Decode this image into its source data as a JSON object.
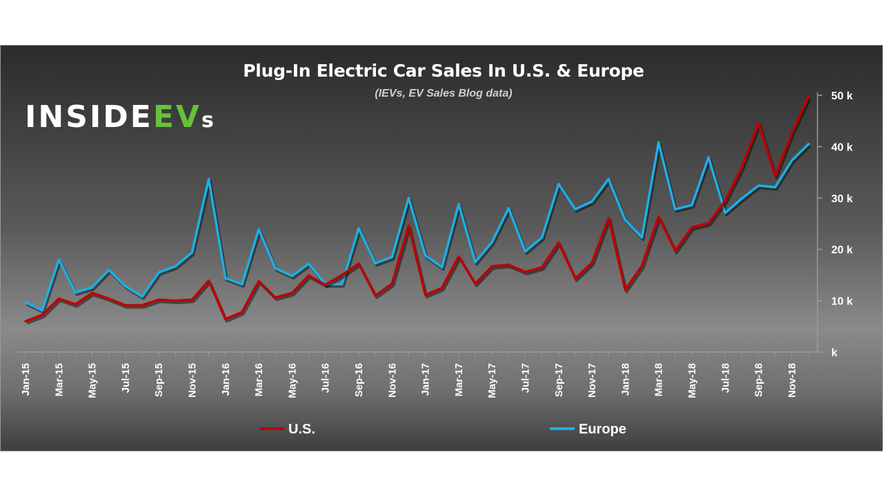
{
  "title": "Plug-In Electric Car Sales In U.S. & Europe",
  "subtitle": "(IEVs, EV Sales Blog data)",
  "logo": {
    "part1": "INSIDE",
    "part2": "EV",
    "part3": "s",
    "accent_color": "#66c23a"
  },
  "chart_data": {
    "type": "line",
    "title": "Plug-In Electric Car Sales In U.S. & Europe",
    "subtitle": "(IEVs, EV Sales Blog data)",
    "x": [
      "Jan-15",
      "Feb-15",
      "Mar-15",
      "Apr-15",
      "May-15",
      "Jun-15",
      "Jul-15",
      "Aug-15",
      "Sep-15",
      "Oct-15",
      "Nov-15",
      "Dec-15",
      "Jan-16",
      "Feb-16",
      "Mar-16",
      "Apr-16",
      "May-16",
      "Jun-16",
      "Jul-16",
      "Aug-16",
      "Sep-16",
      "Oct-16",
      "Nov-16",
      "Dec-16",
      "Jan-17",
      "Feb-17",
      "Mar-17",
      "Apr-17",
      "May-17",
      "Jun-17",
      "Jul-17",
      "Aug-17",
      "Sep-17",
      "Oct-17",
      "Nov-17",
      "Dec-17",
      "Jan-18",
      "Feb-18",
      "Mar-18",
      "Apr-18",
      "May-18",
      "Jun-18",
      "Jul-18",
      "Aug-18",
      "Sep-18",
      "Oct-18",
      "Nov-18",
      "Dec-18"
    ],
    "x_tick_labels": [
      "Jan-15",
      "Mar-15",
      "May-15",
      "Jul-15",
      "Sep-15",
      "Nov-15",
      "Jan-16",
      "Mar-16",
      "May-16",
      "Jul-16",
      "Sep-16",
      "Nov-16",
      "Jan-17",
      "Mar-17",
      "May-17",
      "Jul-17",
      "Sep-17",
      "Nov-17",
      "Jan-18",
      "Mar-18",
      "May-18",
      "Jul-18",
      "Sep-18",
      "Nov-18"
    ],
    "y_tick_labels": [
      "k",
      "10 k",
      "20 k",
      "30 k",
      "40 k",
      "50 k"
    ],
    "ylim": [
      0,
      50000
    ],
    "series": [
      {
        "name": "U.S.",
        "color": "#c00000",
        "values": [
          6000,
          7200,
          10400,
          9300,
          11500,
          10400,
          9100,
          9100,
          10200,
          10000,
          10200,
          13900,
          6400,
          7800,
          13800,
          10600,
          11500,
          14900,
          13100,
          15000,
          17200,
          11000,
          13300,
          24600,
          11100,
          12500,
          18600,
          13300,
          16700,
          17000,
          15600,
          16500,
          21300,
          14300,
          17400,
          26100,
          12100,
          16800,
          26400,
          19700,
          24300,
          25100,
          29500,
          36000,
          44600,
          34300,
          42700,
          49700
        ]
      },
      {
        "name": "Europe",
        "color": "#1ab0e8",
        "values": [
          9700,
          8100,
          18000,
          11600,
          12600,
          16000,
          12800,
          10800,
          15500,
          16700,
          19400,
          33700,
          14400,
          13200,
          23900,
          16300,
          14800,
          17200,
          13200,
          13200,
          24100,
          17300,
          18500,
          30000,
          18800,
          16500,
          28800,
          17500,
          21400,
          28000,
          19600,
          22300,
          32700,
          27800,
          29300,
          33700,
          25700,
          22300,
          40800,
          27800,
          28600,
          37900,
          27100,
          29900,
          32400,
          32100,
          37300,
          40500
        ]
      }
    ],
    "legend_position": "bottom",
    "grid": false
  }
}
